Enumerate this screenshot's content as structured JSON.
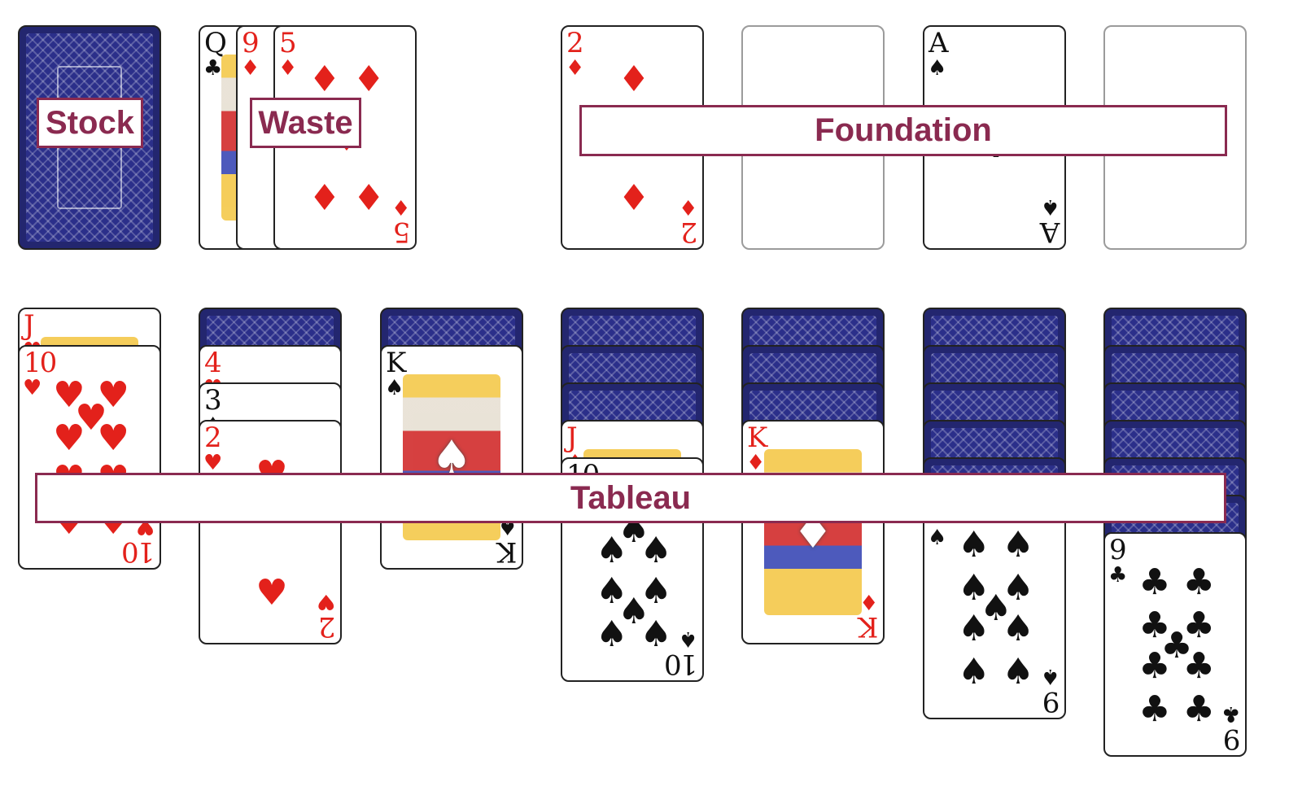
{
  "labels": {
    "stock": "Stock",
    "waste": "Waste",
    "foundation": "Foundation",
    "tableau": "Tableau"
  },
  "colors": {
    "label_border": "#8a2a50",
    "card_back": "#2b2f8a",
    "red_suit": "#e3211b",
    "black_suit": "#111111"
  },
  "stock": {
    "cards": [
      {
        "face": "down"
      }
    ]
  },
  "waste": {
    "cards": [
      {
        "rank": "Q",
        "suit": "♣",
        "color": "black",
        "name": "waste-card-queen-clubs"
      },
      {
        "rank": "9",
        "suit": "♦",
        "color": "red",
        "name": "waste-card-nine-diamonds"
      },
      {
        "rank": "5",
        "suit": "♦",
        "color": "red",
        "name": "waste-card-five-diamonds"
      }
    ]
  },
  "foundation": [
    {
      "rank": "2",
      "suit": "♦",
      "color": "red",
      "name": "foundation-card-two-diamonds"
    },
    null,
    {
      "rank": "A",
      "suit": "♠",
      "color": "black",
      "name": "foundation-card-ace-spades"
    },
    null
  ],
  "tableau": [
    {
      "down": 0,
      "up": [
        {
          "rank": "J",
          "suit": "♥",
          "color": "red"
        },
        {
          "rank": "10",
          "suit": "♥",
          "color": "red"
        }
      ]
    },
    {
      "down": 1,
      "up": [
        {
          "rank": "4",
          "suit": "♥",
          "color": "red"
        },
        {
          "rank": "3",
          "suit": "♠",
          "color": "black"
        },
        {
          "rank": "2",
          "suit": "♥",
          "color": "red"
        }
      ]
    },
    {
      "down": 1,
      "up": [
        {
          "rank": "K",
          "suit": "♠",
          "color": "black"
        }
      ]
    },
    {
      "down": 3,
      "up": [
        {
          "rank": "J",
          "suit": "♦",
          "color": "red"
        },
        {
          "rank": "10",
          "suit": "♠",
          "color": "black"
        }
      ]
    },
    {
      "down": 3,
      "up": [
        {
          "rank": "K",
          "suit": "♦",
          "color": "red"
        }
      ]
    },
    {
      "down": 5,
      "up": [
        {
          "rank": "9",
          "suit": "♠",
          "color": "black"
        }
      ]
    },
    {
      "down": 6,
      "up": [
        {
          "rank": "9",
          "suit": "♣",
          "color": "black"
        }
      ]
    }
  ]
}
